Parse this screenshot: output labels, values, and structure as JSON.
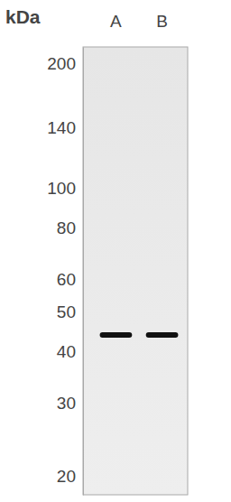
{
  "chart_data": {
    "type": "blot",
    "y_label": "kDa",
    "categories": [
      "A",
      "B"
    ],
    "values": [
      44,
      44
    ],
    "color": "#111111",
    "ylim": [
      18,
      220
    ],
    "yticks": [
      20,
      30,
      40,
      50,
      60,
      80,
      100,
      140,
      200
    ],
    "log": "y"
  }
}
